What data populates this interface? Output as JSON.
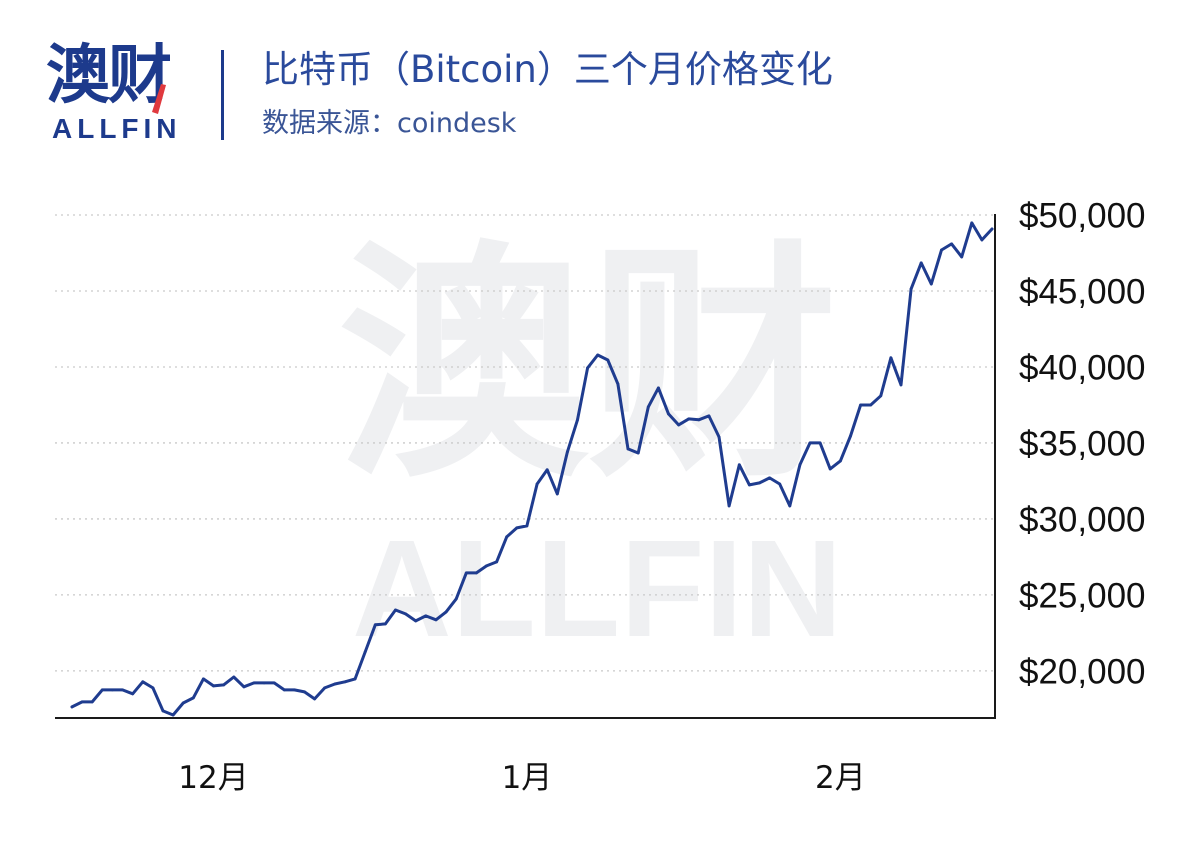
{
  "brand": {
    "logo_cn": "澳财",
    "logo_en": "ALLFIN",
    "color": "#1d3a8c",
    "accent_color": "#e0393e"
  },
  "watermark": {
    "cn": "澳财",
    "en": "ALLFIN"
  },
  "chart_data": {
    "type": "line",
    "title": "比特币（Bitcoin）三个月价格变化",
    "subtitle": "数据来源：coindesk",
    "xlabel": "",
    "ylabel": "",
    "x": [
      "11-17",
      "11-18",
      "11-19",
      "11-20",
      "11-21",
      "11-22",
      "11-23",
      "11-24",
      "11-25",
      "11-26",
      "11-27",
      "11-28",
      "11-29",
      "11-30",
      "12-01",
      "12-02",
      "12-03",
      "12-04",
      "12-05",
      "12-06",
      "12-07",
      "12-08",
      "12-09",
      "12-10",
      "12-11",
      "12-12",
      "12-13",
      "12-14",
      "12-15",
      "12-16",
      "12-17",
      "12-18",
      "12-19",
      "12-20",
      "12-21",
      "12-22",
      "12-23",
      "12-24",
      "12-25",
      "12-26",
      "12-27",
      "12-28",
      "12-29",
      "12-30",
      "12-31",
      "01-01",
      "01-02",
      "01-03",
      "01-04",
      "01-05",
      "01-06",
      "01-07",
      "01-08",
      "01-09",
      "01-10",
      "01-11",
      "01-12",
      "01-13",
      "01-14",
      "01-15",
      "01-16",
      "01-17",
      "01-18",
      "01-19",
      "01-20",
      "01-21",
      "01-22",
      "01-23",
      "01-24",
      "01-25",
      "01-26",
      "01-27",
      "01-28",
      "01-29",
      "01-30",
      "01-31",
      "02-01",
      "02-02",
      "02-03",
      "02-04",
      "02-05",
      "02-06",
      "02-07",
      "02-08",
      "02-09",
      "02-10",
      "02-11",
      "02-12",
      "02-13",
      "02-14",
      "02-15",
      "02-16"
    ],
    "series": [
      {
        "color": "#1f3c8f",
        "values": [
          17630,
          17960,
          17960,
          18750,
          18750,
          18750,
          18490,
          19280,
          18880,
          17370,
          17100,
          17890,
          18220,
          19470,
          19010,
          19080,
          19600,
          18950,
          19210,
          19210,
          19210,
          18750,
          18750,
          18620,
          18160,
          18880,
          19140,
          19280,
          19470,
          21250,
          23030,
          23090,
          24010,
          23750,
          23290,
          23620,
          23360,
          23880,
          24740,
          26450,
          26450,
          26910,
          27170,
          28820,
          29410,
          29540,
          32300,
          33230,
          31650,
          34410,
          36520,
          39940,
          40790,
          40460,
          38880,
          34610,
          34340,
          37370,
          38620,
          36910,
          36190,
          36580,
          36520,
          36780,
          35400,
          30860,
          33560,
          32240,
          32370,
          32700,
          32300,
          30860,
          33560,
          35000,
          35000,
          33290,
          33820,
          35460,
          37500,
          37500,
          38100,
          40600,
          38820,
          45140,
          46850,
          45460,
          47700,
          48100,
          47240,
          49480,
          48360,
          49080
        ]
      }
    ],
    "xticks": [
      {
        "label": "12月",
        "at": "12-01"
      },
      {
        "label": "1月",
        "at": "01-01"
      },
      {
        "label": "2月",
        "at": "02-01"
      }
    ],
    "yticks": [
      {
        "value": 50000,
        "label": "$50,000"
      },
      {
        "value": 45000,
        "label": "$45,000"
      },
      {
        "value": 40000,
        "label": "$40,000"
      },
      {
        "value": 35000,
        "label": "$35,000"
      },
      {
        "value": 30000,
        "label": "$30,000"
      },
      {
        "value": 25000,
        "label": "$25,000"
      },
      {
        "value": 20000,
        "label": "$20,000"
      }
    ],
    "ylim": [
      16900,
      50000
    ],
    "y_axis_side": "right",
    "grid": true,
    "legend": "none"
  }
}
